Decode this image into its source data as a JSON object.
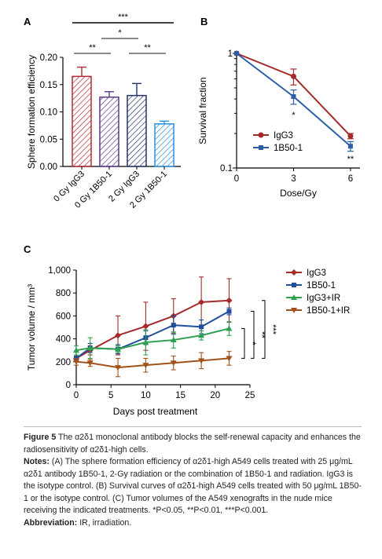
{
  "chart_data": [
    {
      "panel": "A",
      "type": "bar",
      "ylabel": "Sphere formation efficiency",
      "ylim": [
        0,
        0.2
      ],
      "yticks": [
        "0.00",
        "0.05",
        "0.10",
        "0.15",
        "0.20"
      ],
      "categories": [
        "0 Gy IgG3",
        "0 Gy 1B50-1",
        "2 Gy IgG3",
        "2 Gy 1B50-1"
      ],
      "values": [
        0.165,
        0.127,
        0.13,
        0.078
      ],
      "errors": [
        0.017,
        0.01,
        0.022,
        0.005
      ],
      "colors": [
        "#b22c35",
        "#5b3a8c",
        "#25336d",
        "#2a8fe0"
      ],
      "significance": [
        {
          "from": 0,
          "to": 1,
          "label": "**"
        },
        {
          "from": 2,
          "to": 3,
          "label": "**"
        },
        {
          "from": 1,
          "to": 2,
          "label": "*"
        },
        {
          "from": 0,
          "to": 3,
          "label": "***"
        }
      ]
    },
    {
      "panel": "B",
      "type": "line",
      "xlabel": "Dose/Gy",
      "ylabel": "Survival fraction",
      "yscale": "log",
      "ylim": [
        0.1,
        1
      ],
      "xlim": [
        0,
        6.5
      ],
      "xticks": [
        "0",
        "3",
        "6"
      ],
      "yticks": [
        "0.1",
        "1"
      ],
      "series": [
        {
          "name": "IgG3",
          "color": "#a52a2a",
          "x": [
            0,
            3,
            6
          ],
          "y": [
            1.0,
            0.63,
            0.19
          ],
          "err": [
            0,
            0.1,
            0.01
          ]
        },
        {
          "name": "1B50-1",
          "color": "#2c5fa8",
          "x": [
            0,
            3,
            6
          ],
          "y": [
            1.0,
            0.42,
            0.155
          ],
          "err": [
            0,
            0.06,
            0.015
          ]
        }
      ],
      "annotations": [
        {
          "x": 3,
          "label": "*"
        },
        {
          "x": 6,
          "label": "**"
        }
      ]
    },
    {
      "panel": "C",
      "type": "line",
      "xlabel": "Days post treatment",
      "ylabel": "Tumor volume / mm³",
      "xlim": [
        0,
        25
      ],
      "ylim": [
        0,
        1000
      ],
      "xticks": [
        "0",
        "5",
        "10",
        "15",
        "20",
        "25"
      ],
      "yticks": [
        "0",
        "200",
        "400",
        "600",
        "800",
        "1,000"
      ],
      "series": [
        {
          "name": "IgG3",
          "color": "#a52a2a",
          "marker": "diamond",
          "x": [
            0,
            2,
            6,
            10,
            14,
            18,
            22
          ],
          "y": [
            230,
            300,
            430,
            510,
            600,
            720,
            735
          ],
          "err": [
            30,
            40,
            170,
            210,
            150,
            220,
            190
          ]
        },
        {
          "name": "1B50-1",
          "color": "#1f4e9a",
          "marker": "square",
          "x": [
            0,
            2,
            6,
            10,
            14,
            18,
            22
          ],
          "y": [
            230,
            320,
            310,
            410,
            520,
            505,
            640
          ],
          "err": [
            20,
            40,
            40,
            60,
            80,
            60,
            30
          ]
        },
        {
          "name": "IgG3+IR",
          "color": "#2ea050",
          "marker": "triangle",
          "x": [
            0,
            2,
            6,
            10,
            14,
            18,
            22
          ],
          "y": [
            300,
            320,
            310,
            370,
            390,
            430,
            490
          ],
          "err": [
            40,
            90,
            30,
            110,
            70,
            40,
            60
          ]
        },
        {
          "name": "1B50-1+IR",
          "color": "#a0521a",
          "marker": "triangle-down",
          "x": [
            0,
            2,
            6,
            10,
            14,
            18,
            22
          ],
          "y": [
            200,
            190,
            150,
            170,
            190,
            210,
            230
          ],
          "err": [
            30,
            30,
            80,
            60,
            60,
            70,
            60
          ]
        }
      ],
      "significance": [
        {
          "from_series": 2,
          "to_series": 3,
          "label": "*"
        },
        {
          "from_series": 1,
          "to_series": 3,
          "label": "**"
        },
        {
          "from_series": 0,
          "to_series": 3,
          "label": "***"
        }
      ]
    }
  ],
  "panel_labels": {
    "a": "A",
    "b": "B",
    "c": "C"
  },
  "caption": {
    "figure_label": "Figure 5",
    "title": " The α2δ1 monoclonal antibody blocks the self-renewal capacity and enhances the radiosensitivity of α2δ1-high cells.",
    "notes_label": "Notes:",
    "notes": " (A) The sphere formation efficiency of α2δ1-high A549 cells treated with 25 μg/mL α2δ1 antibody 1B50-1, 2-Gy radiation or the combination of 1B50-1 and radiation. IgG3 is the isotype control. (B) Survival curves of α2δ1-high A549 cells treated with 50 μg/mL 1B50-1 or the isotype control. (C) Tumor volumes of the A549 xenografts in the nude mice receiving the indicated treatments. *P<0.05, **P<0.01, ***P<0.001.",
    "abbrev_label": "Abbreviation:",
    "abbrev": " IR, irradiation."
  }
}
